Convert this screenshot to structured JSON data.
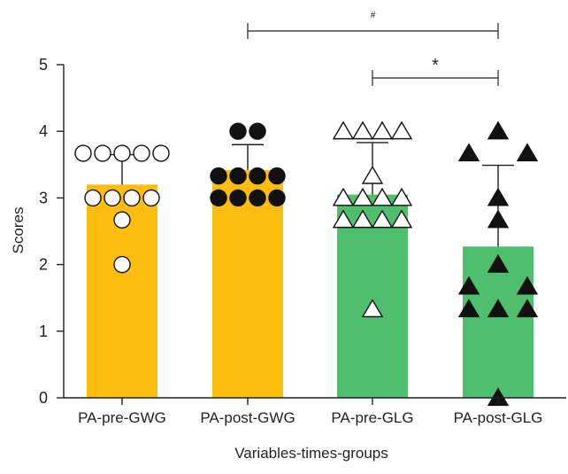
{
  "chart_data": {
    "type": "bar",
    "title": "",
    "xlabel": "Variables-times-groups",
    "ylabel": "Scores",
    "ylim": [
      0,
      5
    ],
    "yticks": [
      0,
      1,
      2,
      3,
      4,
      5
    ],
    "grid": false,
    "colors": {
      "gwg": "#fdbd10",
      "glg": "#4fbe6e",
      "axis": "#231f20"
    },
    "bars": [
      {
        "category": "PA-pre-GWG",
        "mean": 3.2,
        "sd": 0.45,
        "color": "#fdbd10",
        "marker": "circle-open",
        "points": [
          {
            "y": 3.67,
            "slot": -2
          },
          {
            "y": 3.67,
            "slot": -1
          },
          {
            "y": 3.67,
            "slot": 0
          },
          {
            "y": 3.67,
            "slot": 1
          },
          {
            "y": 3.67,
            "slot": 2
          },
          {
            "y": 3.0,
            "slot": -1.5
          },
          {
            "y": 3.0,
            "slot": -0.5
          },
          {
            "y": 3.0,
            "slot": 0.5
          },
          {
            "y": 3.0,
            "slot": 1.5
          },
          {
            "y": 2.67,
            "slot": 0
          },
          {
            "y": 2.0,
            "slot": 0
          }
        ]
      },
      {
        "category": "PA-post-GWG",
        "mean": 3.42,
        "sd": 0.38,
        "color": "#fdbd10",
        "marker": "circle-filled",
        "points": [
          {
            "y": 4.0,
            "slot": -0.5
          },
          {
            "y": 4.0,
            "slot": 0.5
          },
          {
            "y": 3.33,
            "slot": -1.5
          },
          {
            "y": 3.33,
            "slot": -0.5
          },
          {
            "y": 3.33,
            "slot": 0.5
          },
          {
            "y": 3.33,
            "slot": 1.5
          },
          {
            "y": 3.0,
            "slot": -1.5
          },
          {
            "y": 3.0,
            "slot": -0.5
          },
          {
            "y": 3.0,
            "slot": 0.5
          },
          {
            "y": 3.0,
            "slot": 1.5
          }
        ]
      },
      {
        "category": "PA-pre-GLG",
        "mean": 3.05,
        "sd": 0.78,
        "color": "#4fbe6e",
        "marker": "triangle-open",
        "points": [
          {
            "y": 4.0,
            "slot": -1.5
          },
          {
            "y": 4.0,
            "slot": -0.5
          },
          {
            "y": 4.0,
            "slot": 0.5
          },
          {
            "y": 4.0,
            "slot": 1.5
          },
          {
            "y": 3.33,
            "slot": 0
          },
          {
            "y": 3.0,
            "slot": -1.5
          },
          {
            "y": 3.0,
            "slot": -0.5
          },
          {
            "y": 3.0,
            "slot": 0.5
          },
          {
            "y": 3.0,
            "slot": 1.5
          },
          {
            "y": 2.67,
            "slot": -1.5
          },
          {
            "y": 2.67,
            "slot": -0.5
          },
          {
            "y": 2.67,
            "slot": 0.5
          },
          {
            "y": 2.67,
            "slot": 1.5
          },
          {
            "y": 1.33,
            "slot": 0
          }
        ]
      },
      {
        "category": "PA-post-GLG",
        "mean": 2.27,
        "sd": 1.22,
        "color": "#4fbe6e",
        "marker": "triangle-filled",
        "points": [
          {
            "y": 4.0,
            "slot": 0
          },
          {
            "y": 3.67,
            "slot": -1.5
          },
          {
            "y": 3.67,
            "slot": 1.5
          },
          {
            "y": 3.0,
            "slot": 0
          },
          {
            "y": 2.67,
            "slot": 0
          },
          {
            "y": 2.0,
            "slot": 0
          },
          {
            "y": 1.67,
            "slot": -1.5
          },
          {
            "y": 1.67,
            "slot": 1.5
          },
          {
            "y": 1.33,
            "slot": -1.5
          },
          {
            "y": 1.33,
            "slot": 0
          },
          {
            "y": 1.33,
            "slot": 1.5
          },
          {
            "y": 0.0,
            "slot": 0
          }
        ]
      }
    ],
    "significance": [
      {
        "from": 1,
        "to": 3,
        "label": "#",
        "level": 1
      },
      {
        "from": 2,
        "to": 3,
        "label": "*",
        "level": 0
      }
    ]
  }
}
